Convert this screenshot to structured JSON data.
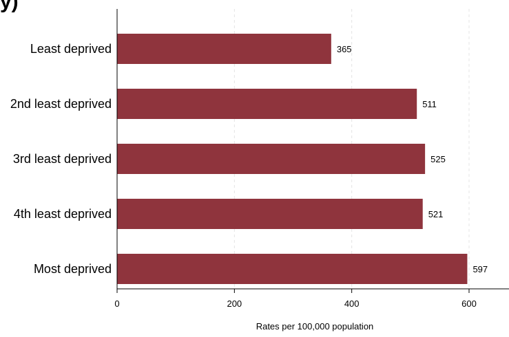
{
  "chart_data": {
    "type": "bar",
    "orientation": "horizontal",
    "title_fragment": "y)",
    "categories": [
      "Least deprived",
      "2nd least deprived",
      "3rd least deprived",
      "4th least deprived",
      "Most deprived"
    ],
    "values": [
      365,
      511,
      525,
      521,
      597
    ],
    "data_labels": [
      "365",
      "511",
      "525",
      "521",
      "597"
    ],
    "xlabel": "Rates per 100,000 population",
    "ylabel": "",
    "xlim": [
      0,
      650
    ],
    "xticks": [
      0,
      200,
      400,
      600
    ],
    "xtick_labels": [
      "0",
      "200",
      "400",
      "600"
    ],
    "grid": "vertical dashed",
    "bar_color": "#8f343d",
    "grid_color": "#e4e4e4",
    "axis_color": "#000000"
  }
}
